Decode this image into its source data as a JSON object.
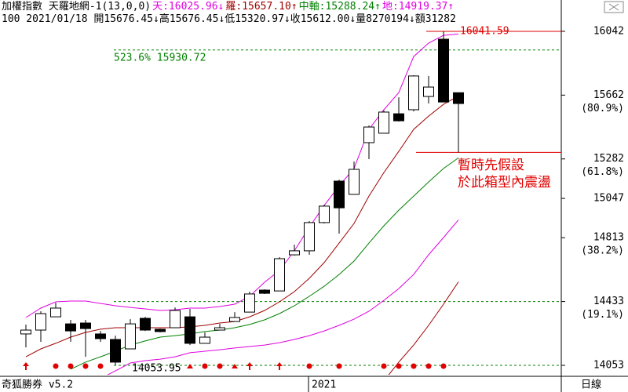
{
  "chart_data": {
    "type": "candlestick",
    "header": {
      "symbol": "加權指數 天羅地網-1(13,0,0)",
      "levels": [
        {
          "text": "天:16025.96↓",
          "color": "#e000e0"
        },
        {
          "text": "羅:15657.10↑",
          "color": "#a00000"
        },
        {
          "text": "中軸:15288.24↑",
          "color": "#008000"
        },
        {
          "text": "地:14919.37↑",
          "color": "#e000e0"
        }
      ],
      "quote": "100 2021/01/18 開15676.45↓高15676.45↓低15320.97↓收15612.00↓量8270194↓額31282"
    },
    "categories": [
      null,
      null,
      null,
      null,
      null,
      null,
      null,
      null,
      null,
      null,
      null,
      null,
      null,
      null,
      null,
      null,
      null,
      null,
      null,
      "2021",
      null,
      null,
      null,
      null,
      null,
      null,
      null,
      null,
      null,
      null
    ],
    "open": [
      14240,
      14263,
      14342,
      14300,
      14305,
      14240,
      14207,
      14151,
      14333,
      14268,
      14277,
      14342,
      14184,
      14263,
      14314,
      14370,
      14501,
      14496,
      14711,
      14735,
      14903,
      15150,
      15071,
      15379,
      15435,
      15551,
      15575,
      15654,
      15995,
      15676.45
    ],
    "high": [
      14296,
      14375,
      14426,
      14324,
      14324,
      14258,
      14230,
      14328,
      14342,
      14272,
      14398,
      14389,
      14249,
      14300,
      14370,
      14492,
      14506,
      14697,
      14772,
      14912,
      15010,
      15159,
      15267,
      15481,
      15570,
      15649,
      15780,
      15776,
      16041.59,
      15676.45
    ],
    "low": [
      14160,
      14193,
      14342,
      14193,
      14104,
      14193,
      14053.95,
      14151,
      14258,
      14249,
      14277,
      14174,
      14184,
      14263,
      14314,
      14370,
      14478,
      14496,
      14707,
      14711,
      14898,
      14837,
      15071,
      15281,
      15435,
      15505,
      15565,
      15612,
      15621,
      15320.97
    ],
    "close": [
      14263,
      14361,
      14394,
      14258,
      14272,
      14212,
      14072,
      14300,
      14263,
      14254,
      14380,
      14184,
      14221,
      14277,
      14338,
      14478,
      14482,
      14688,
      14735,
      14903,
      15001,
      14991,
      15220,
      15472,
      15561,
      15509,
      15776,
      15710,
      15621,
      15612
    ],
    "up_color": "#ffffff",
    "down_color": "#000000",
    "series": [
      {
        "color": "#e000e0",
        "values": [
          14338,
          14394,
          14431,
          14436,
          14436,
          14422,
          14408,
          14398,
          14389,
          14380,
          14384,
          14394,
          14394,
          14403,
          14417,
          14464,
          14548,
          14618,
          14735,
          14875,
          15005,
          15122,
          15225,
          15458,
          15575,
          15677,
          15892,
          15972,
          16018,
          16025.96
        ]
      },
      {
        "color": "#a00000",
        "values": [
          14104,
          14151,
          14184,
          14221,
          14249,
          14268,
          14277,
          14277,
          14277,
          14277,
          14277,
          14282,
          14291,
          14305,
          14314,
          14342,
          14380,
          14431,
          14492,
          14571,
          14665,
          14781,
          14898,
          15061,
          15201,
          15327,
          15458,
          15537,
          15607,
          15657.1
        ]
      },
      {
        "color": "#008000",
        "values": [
          null,
          null,
          null,
          14030,
          14072,
          14104,
          14137,
          14174,
          14198,
          14221,
          14230,
          14240,
          14254,
          14263,
          14277,
          14296,
          14324,
          14361,
          14408,
          14464,
          14524,
          14594,
          14674,
          14781,
          14884,
          14977,
          15061,
          15145,
          15225,
          15288.24
        ]
      },
      {
        "color": "#e000e0",
        "values": [
          null,
          null,
          null,
          null,
          null,
          13975,
          14020,
          14067,
          14081,
          14090,
          14104,
          14128,
          14137,
          14146,
          14156,
          14165,
          14174,
          14188,
          14207,
          14230,
          14258,
          14291,
          14328,
          14375,
          14440,
          14510,
          14594,
          14711,
          14814,
          14919.37
        ]
      },
      {
        "color": "#a00000",
        "values": [
          null,
          null,
          null,
          null,
          null,
          null,
          null,
          null,
          null,
          null,
          null,
          null,
          null,
          null,
          null,
          null,
          null,
          null,
          null,
          null,
          null,
          null,
          null,
          null,
          13960,
          14072,
          14174,
          14291,
          14417,
          14550
        ]
      }
    ],
    "ylim": [
      13997,
      16135
    ],
    "yticks": [
      16042,
      15662,
      15282,
      15047,
      14813,
      14433,
      14053
    ],
    "ytick_notes": [
      null,
      "(80.9%)",
      "(61.8%)",
      null,
      "(38.2%)",
      "(19.1%)",
      null
    ],
    "levels": [
      {
        "value": 15930.72,
        "color": "#008000",
        "dashed": true,
        "label": "523.6% 15930.72"
      },
      {
        "value": 14433,
        "color": "#008000",
        "dashed": true
      },
      {
        "value": 14053,
        "color": "#008000",
        "dashed": true
      },
      {
        "value": 16041.59,
        "color": "#e00000",
        "dashed": false,
        "label": "16041.59"
      },
      {
        "value": 15320.97,
        "color": "#e00000",
        "dashed": false
      }
    ],
    "annotations": [
      {
        "text": "14053.95",
        "color": "#000000"
      },
      {
        "text": "暫時先假設",
        "color": "#e00000"
      },
      {
        "text": "於此箱型內震盪",
        "color": "#e00000"
      }
    ],
    "footer": {
      "left": "奇狐勝券 v5.2",
      "right": "日線"
    }
  }
}
